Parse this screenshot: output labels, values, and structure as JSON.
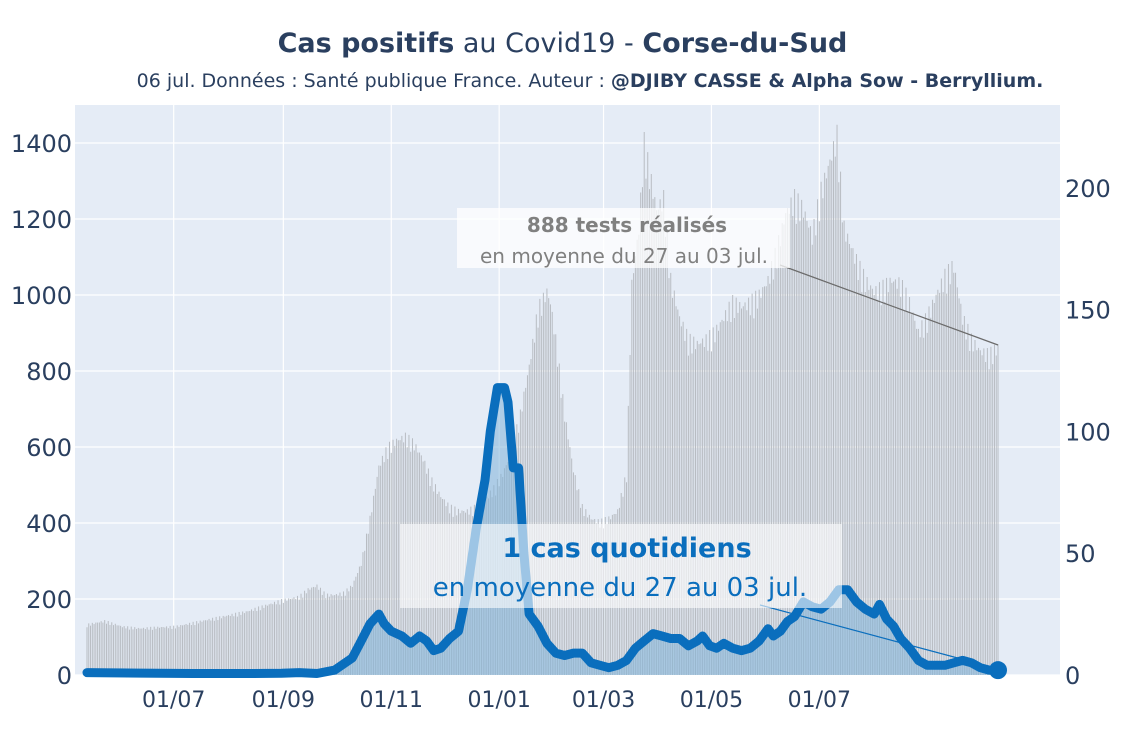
{
  "header": {
    "title_bold_1": "Cas positifs",
    "title_mid": " au Covid19 - ",
    "title_bold_2": "Corse-du-Sud",
    "subtitle_plain": "06 jul. Données : Santé publique France. Auteur : ",
    "subtitle_bold": "@DJIBY CASSE & Alpha Sow - Berryllium."
  },
  "colors": {
    "plot_bg": "#e5ecf6",
    "cases_line": "#0a6ebd",
    "cases_fill": "#7fb3d9",
    "tests_bars": "#b8bcc2",
    "annotation_tests": "#808080",
    "annotation_cases": "#0a6ebd",
    "axis_text": "#2a3f5f"
  },
  "chart_data": {
    "type": "line",
    "x_tick_labels": [
      "01/07",
      "01/09",
      "01/11",
      "01/01",
      "01/03",
      "01/05",
      "01/07"
    ],
    "y_left_ticks": [
      "0",
      "200",
      "400",
      "600",
      "800",
      "1000",
      "1200",
      "1400"
    ],
    "y_right_ticks": [
      "0",
      "50",
      "100",
      "150",
      "200"
    ],
    "ylim_left": [
      0,
      1500
    ],
    "ylim_right": [
      0,
      234
    ],
    "grid": true,
    "x_unit": "days since 2020-05-13",
    "series": [
      {
        "axis": "left",
        "kind": "bar",
        "points": [
          [
            0,
            135
          ],
          [
            10,
            145
          ],
          [
            20,
            130
          ],
          [
            30,
            125
          ],
          [
            40,
            128
          ],
          [
            50,
            130
          ],
          [
            60,
            140
          ],
          [
            70,
            150
          ],
          [
            80,
            160
          ],
          [
            90,
            170
          ],
          [
            100,
            185
          ],
          [
            110,
            200
          ],
          [
            120,
            210
          ],
          [
            125,
            230
          ],
          [
            130,
            240
          ],
          [
            135,
            215
          ],
          [
            140,
            215
          ],
          [
            145,
            220
          ],
          [
            150,
            240
          ],
          [
            155,
            300
          ],
          [
            160,
            420
          ],
          [
            165,
            560
          ],
          [
            170,
            610
          ],
          [
            175,
            630
          ],
          [
            180,
            640
          ],
          [
            185,
            620
          ],
          [
            190,
            580
          ],
          [
            195,
            520
          ],
          [
            200,
            480
          ],
          [
            205,
            450
          ],
          [
            210,
            440
          ],
          [
            215,
            440
          ],
          [
            220,
            450
          ],
          [
            225,
            470
          ],
          [
            230,
            500
          ],
          [
            235,
            540
          ],
          [
            240,
            600
          ],
          [
            245,
            700
          ],
          [
            250,
            830
          ],
          [
            255,
            980
          ],
          [
            260,
            1030
          ],
          [
            262,
            1000
          ],
          [
            265,
            900
          ],
          [
            270,
            700
          ],
          [
            275,
            550
          ],
          [
            280,
            450
          ],
          [
            285,
            420
          ],
          [
            290,
            410
          ],
          [
            295,
            420
          ],
          [
            300,
            440
          ],
          [
            305,
            540
          ],
          [
            308,
            1050
          ],
          [
            312,
            1200
          ],
          [
            315,
            1430
          ],
          [
            318,
            1350
          ],
          [
            322,
            1250
          ],
          [
            326,
            1280
          ],
          [
            330,
            1060
          ],
          [
            335,
            960
          ],
          [
            340,
            900
          ],
          [
            345,
            890
          ],
          [
            350,
            900
          ],
          [
            355,
            920
          ],
          [
            360,
            960
          ],
          [
            365,
            1000
          ],
          [
            370,
            990
          ],
          [
            375,
            1000
          ],
          [
            380,
            1020
          ],
          [
            385,
            1060
          ],
          [
            390,
            1140
          ],
          [
            395,
            1240
          ],
          [
            400,
            1280
          ],
          [
            405,
            1250
          ],
          [
            410,
            1180
          ],
          [
            415,
            1300
          ],
          [
            420,
            1380
          ],
          [
            424,
            1450
          ],
          [
            428,
            1200
          ],
          [
            432,
            1150
          ],
          [
            436,
            1100
          ],
          [
            440,
            1060
          ],
          [
            445,
            1030
          ],
          [
            450,
            1040
          ],
          [
            455,
            1060
          ],
          [
            460,
            1050
          ],
          [
            465,
            1000
          ],
          [
            470,
            920
          ],
          [
            475,
            960
          ],
          [
            480,
            1020
          ],
          [
            485,
            1070
          ],
          [
            490,
            1100
          ],
          [
            495,
            960
          ],
          [
            500,
            900
          ],
          [
            505,
            870
          ],
          [
            510,
            860
          ],
          [
            515,
            880
          ]
        ]
      },
      {
        "axis": "right",
        "kind": "line",
        "points": [
          [
            0,
            1
          ],
          [
            30,
            0.8
          ],
          [
            60,
            0.6
          ],
          [
            90,
            0.6
          ],
          [
            110,
            0.7
          ],
          [
            120,
            1
          ],
          [
            130,
            0.6
          ],
          [
            140,
            2
          ],
          [
            150,
            7
          ],
          [
            155,
            14
          ],
          [
            160,
            21
          ],
          [
            165,
            25
          ],
          [
            168,
            21
          ],
          [
            172,
            18
          ],
          [
            178,
            16
          ],
          [
            183,
            13
          ],
          [
            188,
            16
          ],
          [
            192,
            14
          ],
          [
            196,
            10
          ],
          [
            200,
            11
          ],
          [
            205,
            15
          ],
          [
            210,
            18
          ],
          [
            215,
            35
          ],
          [
            220,
            60
          ],
          [
            225,
            80
          ],
          [
            228,
            100
          ],
          [
            232,
            118
          ],
          [
            236,
            118
          ],
          [
            238,
            112
          ],
          [
            241,
            85
          ],
          [
            244,
            85
          ],
          [
            247,
            50
          ],
          [
            250,
            25
          ],
          [
            255,
            20
          ],
          [
            260,
            13
          ],
          [
            265,
            9
          ],
          [
            270,
            8
          ],
          [
            275,
            9
          ],
          [
            280,
            9
          ],
          [
            285,
            5
          ],
          [
            290,
            4
          ],
          [
            295,
            3
          ],
          [
            300,
            4
          ],
          [
            305,
            6
          ],
          [
            310,
            11
          ],
          [
            315,
            14
          ],
          [
            320,
            17
          ],
          [
            325,
            16
          ],
          [
            330,
            15
          ],
          [
            335,
            15
          ],
          [
            340,
            12
          ],
          [
            345,
            14
          ],
          [
            348,
            16
          ],
          [
            352,
            12
          ],
          [
            356,
            11
          ],
          [
            360,
            13
          ],
          [
            365,
            11
          ],
          [
            370,
            10
          ],
          [
            375,
            11
          ],
          [
            380,
            14
          ],
          [
            385,
            19
          ],
          [
            388,
            16
          ],
          [
            392,
            18
          ],
          [
            396,
            22
          ],
          [
            400,
            24
          ],
          [
            405,
            30
          ],
          [
            410,
            28
          ],
          [
            415,
            27
          ],
          [
            420,
            30
          ],
          [
            425,
            35
          ],
          [
            430,
            35
          ],
          [
            435,
            30
          ],
          [
            440,
            27
          ],
          [
            445,
            25
          ],
          [
            448,
            29
          ],
          [
            452,
            23
          ],
          [
            456,
            20
          ],
          [
            460,
            15
          ],
          [
            465,
            11
          ],
          [
            470,
            6
          ],
          [
            475,
            4
          ],
          [
            480,
            4
          ],
          [
            485,
            4
          ],
          [
            490,
            5
          ],
          [
            495,
            6
          ],
          [
            500,
            5
          ],
          [
            505,
            3
          ],
          [
            510,
            2
          ],
          [
            515,
            2
          ]
        ]
      }
    ],
    "annotations": [
      {
        "bold": "888 tests réalisés",
        "text": "en moyenne du 27 au 03 jul."
      },
      {
        "bold": "1 cas quotidiens",
        "text": "en moyenne du 27 au 03 jul."
      }
    ]
  }
}
